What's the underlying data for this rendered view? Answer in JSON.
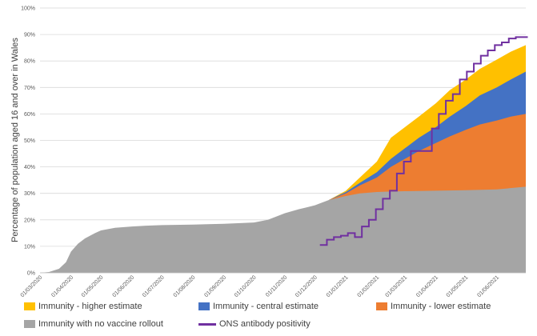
{
  "chart_data": {
    "type": "area",
    "title": "",
    "xlabel": "",
    "ylabel": "Percentage of population aged 16 and over in Wales",
    "ylim": [
      0,
      100
    ],
    "yticks": [
      "0%",
      "10%",
      "20%",
      "30%",
      "40%",
      "50%",
      "60%",
      "70%",
      "80%",
      "90%",
      "100%"
    ],
    "xticks": [
      "01/03/2020",
      "01/04/2020",
      "01/05/2020",
      "01/06/2020",
      "01/07/2020",
      "01/08/2020",
      "01/09/2020",
      "01/10/2020",
      "01/11/2020",
      "01/12/2020",
      "01/01/2021",
      "01/02/2021",
      "01/03/2021",
      "01/04/2021",
      "01/05/2021",
      "01/06/2021"
    ],
    "x_start": "2020-03-01",
    "x_end": "2021-06-30",
    "grid": true,
    "legend_position": "bottom",
    "series": [
      {
        "name": "Immunity with no vaccine rollout",
        "color": "#a5a5a5",
        "x": [
          "2020-03-01",
          "2020-03-10",
          "2020-03-20",
          "2020-03-27",
          "2020-04-01",
          "2020-04-08",
          "2020-04-15",
          "2020-04-25",
          "2020-05-01",
          "2020-05-15",
          "2020-06-01",
          "2020-06-15",
          "2020-07-01",
          "2020-08-01",
          "2020-09-01",
          "2020-10-01",
          "2020-10-15",
          "2020-11-01",
          "2020-11-15",
          "2020-12-01",
          "2020-12-15",
          "2021-01-01",
          "2021-01-15",
          "2021-02-01",
          "2021-02-15",
          "2021-03-01",
          "2021-04-01",
          "2021-05-01",
          "2021-06-01",
          "2021-06-30"
        ],
        "values": [
          0,
          0.3,
          1.5,
          4,
          8,
          11,
          13,
          15,
          16,
          17,
          17.5,
          17.8,
          18,
          18.2,
          18.5,
          19,
          20,
          22.5,
          24,
          25.5,
          27.5,
          29,
          30,
          30.5,
          30.7,
          30.8,
          31,
          31.2,
          31.5,
          32.5
        ]
      },
      {
        "name": "Immunity - lower estimate",
        "color": "#ed7d31",
        "x": [
          "2020-12-15",
          "2021-01-01",
          "2021-01-15",
          "2021-02-01",
          "2021-02-15",
          "2021-03-01",
          "2021-03-15",
          "2021-04-01",
          "2021-04-15",
          "2021-05-01",
          "2021-05-15",
          "2021-06-01",
          "2021-06-15",
          "2021-06-30"
        ],
        "values": [
          27.5,
          30,
          33,
          36,
          40,
          43,
          46,
          49,
          51.5,
          54,
          56,
          57.5,
          59,
          60
        ]
      },
      {
        "name": "Immunity - central estimate",
        "color": "#4472c4",
        "x": [
          "2020-12-15",
          "2021-01-01",
          "2021-01-15",
          "2021-02-01",
          "2021-02-15",
          "2021-03-01",
          "2021-03-15",
          "2021-04-01",
          "2021-04-15",
          "2021-05-01",
          "2021-05-15",
          "2021-06-01",
          "2021-06-15",
          "2021-06-30"
        ],
        "values": [
          27.5,
          30.5,
          34,
          38,
          43,
          47,
          51,
          55,
          59,
          63,
          67,
          70,
          73,
          76
        ]
      },
      {
        "name": "Immunity - higher estimate",
        "color": "#ffc000",
        "x": [
          "2020-12-15",
          "2021-01-01",
          "2021-01-15",
          "2021-02-01",
          "2021-02-15",
          "2021-03-01",
          "2021-03-15",
          "2021-04-01",
          "2021-04-15",
          "2021-05-01",
          "2021-05-15",
          "2021-06-01",
          "2021-06-15",
          "2021-06-30"
        ],
        "values": [
          27.5,
          31,
          36,
          42,
          51,
          55,
          59,
          64,
          69,
          73,
          77,
          80.5,
          83.5,
          86
        ]
      },
      {
        "name": "ONS antibody positivity",
        "color": "#7030a0",
        "style": "step",
        "x": [
          "2020-12-06",
          "2020-12-13",
          "2020-12-20",
          "2020-12-27",
          "2021-01-03",
          "2021-01-10",
          "2021-01-17",
          "2021-01-24",
          "2021-01-31",
          "2021-02-07",
          "2021-02-14",
          "2021-02-21",
          "2021-02-28",
          "2021-03-07",
          "2021-03-14",
          "2021-03-21",
          "2021-03-28",
          "2021-04-04",
          "2021-04-11",
          "2021-04-18",
          "2021-04-25",
          "2021-05-02",
          "2021-05-09",
          "2021-05-16",
          "2021-05-23",
          "2021-05-30",
          "2021-06-06",
          "2021-06-13",
          "2021-06-20",
          "2021-06-27"
        ],
        "values": [
          10.5,
          12.5,
          13.5,
          14,
          15,
          13.5,
          17.5,
          20,
          24,
          28,
          31,
          37.5,
          42,
          46,
          46,
          46,
          54.5,
          60,
          65,
          67.5,
          73,
          76,
          79,
          82,
          84,
          86,
          87,
          88.5,
          89,
          89
        ]
      }
    ]
  },
  "legend": {
    "items": [
      {
        "label": "Immunity - higher estimate",
        "color": "#ffc000",
        "kind": "swatch"
      },
      {
        "label": "Immunity - central estimate",
        "color": "#4472c4",
        "kind": "swatch"
      },
      {
        "label": "Immunity - lower estimate",
        "color": "#ed7d31",
        "kind": "swatch"
      },
      {
        "label": "Immunity with no vaccine rollout",
        "color": "#a5a5a5",
        "kind": "swatch"
      },
      {
        "label": "ONS antibody positivity",
        "color": "#7030a0",
        "kind": "line"
      }
    ]
  }
}
